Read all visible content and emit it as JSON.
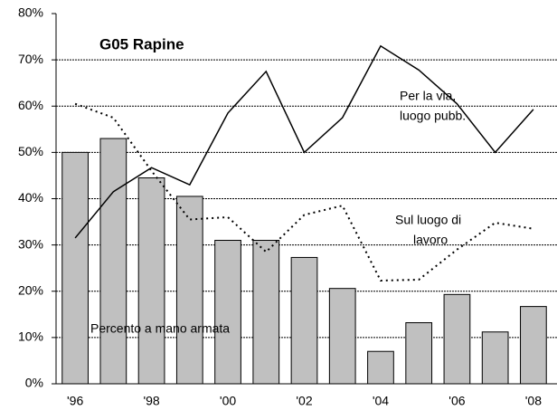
{
  "chart_data": {
    "type": "bar_line",
    "title": "G05   Rapine",
    "categories": [
      "'96",
      null,
      "'98",
      null,
      "'00",
      null,
      "'02",
      null,
      "'04",
      null,
      "'06",
      null,
      "'08"
    ],
    "series": [
      {
        "type": "bar",
        "color": "#c0c0c0",
        "values": [
          50,
          53,
          44.5,
          40.5,
          31,
          31,
          27.3,
          20.6,
          7,
          13.2,
          19.3,
          11.2,
          16.7
        ]
      },
      {
        "type": "line",
        "color": "#000000",
        "dash": "solid",
        "values": [
          31.5,
          41.5,
          46.7,
          43,
          58.5,
          67.5,
          50,
          57.5,
          73,
          67.8,
          60.5,
          50,
          59.3
        ]
      },
      {
        "type": "line",
        "color": "#000000",
        "dash": "dotted",
        "values": [
          60.5,
          57.5,
          46,
          35.5,
          36,
          28.5,
          36.5,
          38.5,
          22.3,
          22.5,
          29,
          34.8,
          33.5
        ]
      }
    ],
    "annotations": [
      {
        "lines": [
          "Per la via,",
          "luogo pubb."
        ]
      },
      {
        "lines": [
          "Sul luogo di",
          "lavoro"
        ]
      },
      {
        "lines": [
          "Percento a mano armata"
        ]
      }
    ],
    "ylim": [
      0,
      80
    ],
    "yticks": [
      {
        "value": 0,
        "label": "0%"
      },
      {
        "value": 10,
        "label": "10%"
      },
      {
        "value": 20,
        "label": "20%"
      },
      {
        "value": 30,
        "label": "30%"
      },
      {
        "value": 40,
        "label": "40%"
      },
      {
        "value": 50,
        "label": "50%"
      },
      {
        "value": 60,
        "label": "60%"
      },
      {
        "value": 70,
        "label": "70%"
      },
      {
        "value": 80,
        "label": "80%"
      }
    ],
    "grid": true
  }
}
